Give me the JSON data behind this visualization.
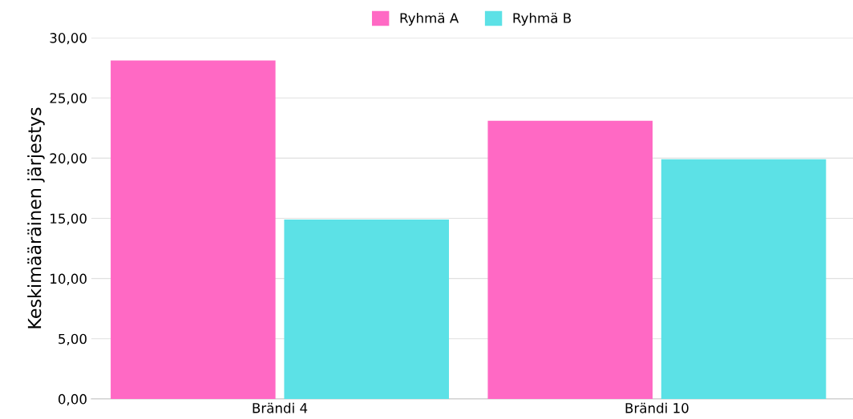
{
  "chart_data": {
    "type": "bar",
    "ylabel": "Keskimääräinen järjestys",
    "categories": [
      "Brändi 4",
      "Brändi 10"
    ],
    "series": [
      {
        "name": "Ryhmä A",
        "color": "#ff69c4",
        "values": [
          28.1,
          23.1
        ]
      },
      {
        "name": "Ryhmä B",
        "color": "#5ce1e6",
        "values": [
          14.9,
          19.9
        ]
      }
    ],
    "ylim": [
      0,
      30
    ],
    "yticks": [
      {
        "value": 0,
        "label": "0,00"
      },
      {
        "value": 5,
        "label": "5,00"
      },
      {
        "value": 10,
        "label": "10,00"
      },
      {
        "value": 15,
        "label": "15,00"
      },
      {
        "value": 20,
        "label": "20,00"
      },
      {
        "value": 25,
        "label": "25,00"
      },
      {
        "value": 30,
        "label": "30,00"
      }
    ],
    "grid": "y",
    "legend": "top"
  }
}
